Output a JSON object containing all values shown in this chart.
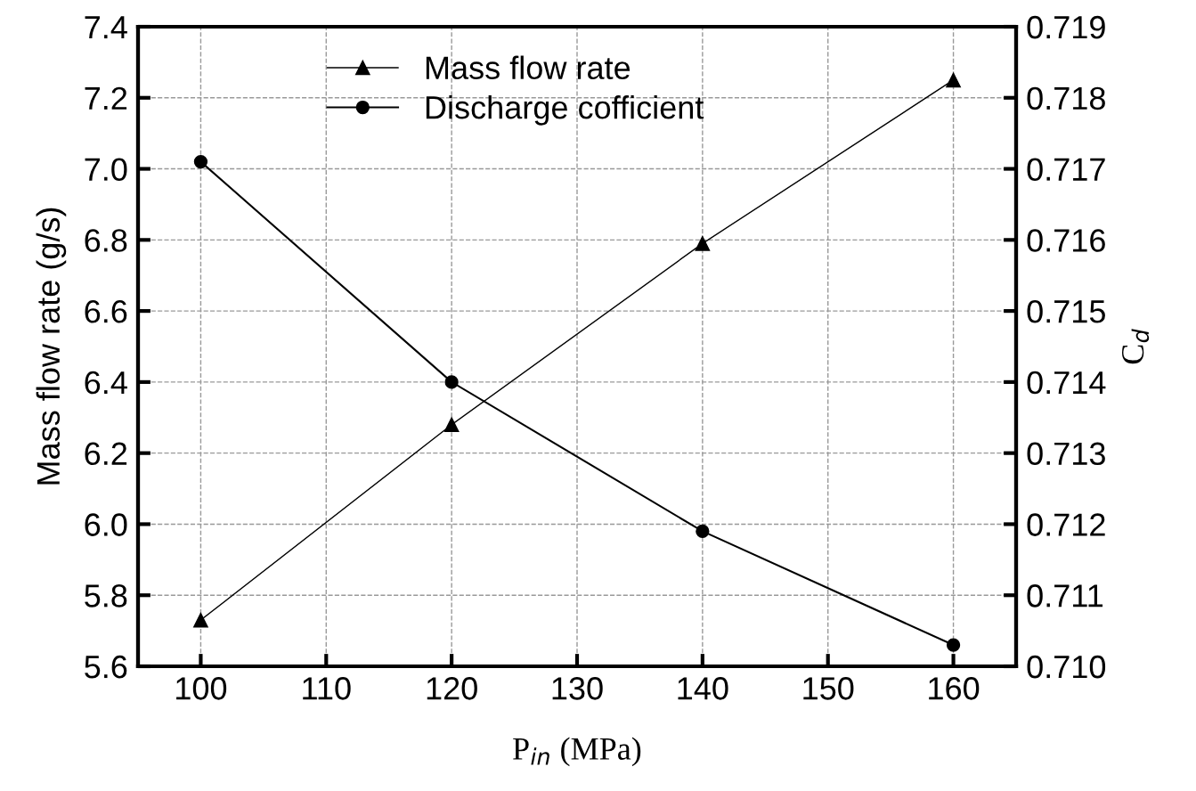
{
  "chart_data": {
    "type": "line",
    "xlabel": "P$_{in}$ (MPa)",
    "ylabel": "Mass flow rate (g/s)",
    "y2label": "C$_{d}$",
    "x": [
      100,
      120,
      140,
      160
    ],
    "series": [
      {
        "name": "Mass flow rate",
        "color": "#000000",
        "values": [
          5.73,
          6.28,
          6.79,
          7.25
        ],
        "marker": "triangle"
      },
      {
        "name": "Discharge cofficient",
        "color": "#000000",
        "values": [
          0.7171,
          0.714,
          0.7119,
          0.7103
        ],
        "marker": "circle",
        "axis": "y2"
      }
    ],
    "xlim": [
      95,
      165
    ],
    "xticks": [
      100,
      110,
      120,
      130,
      140,
      150,
      160
    ],
    "ylim": [
      5.6,
      7.4
    ],
    "yticks": [
      5.6,
      5.8,
      {
        "value": 6.0,
        "label": "6.0"
      },
      6.2,
      6.4,
      6.6,
      6.8,
      {
        "value": 7.0,
        "label": "7.0"
      },
      7.2,
      7.4
    ],
    "y2lim": [
      0.71,
      0.719
    ],
    "y2ticks": [
      {
        "value": 0.71,
        "label": "0.710"
      },
      0.711,
      0.712,
      0.713,
      0.714,
      0.715,
      0.716,
      0.717,
      0.718,
      0.719
    ],
    "grid": true,
    "legend": "top",
    "line_style": "solid"
  }
}
